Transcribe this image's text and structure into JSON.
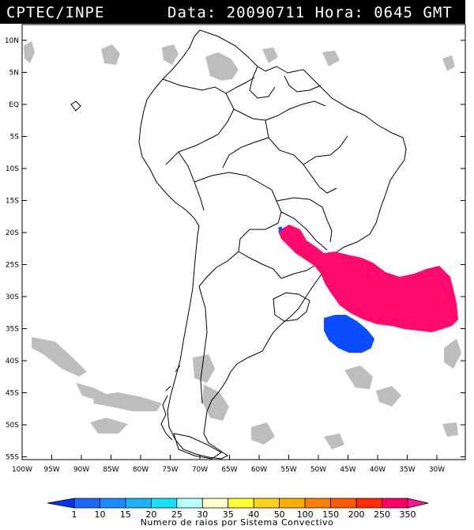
{
  "header": {
    "source": "CPTEC/INPE",
    "datetime": "Data: 20090711 Hora: 0645 GMT"
  },
  "latitude_labels": [
    "10N",
    "5N",
    "EQ",
    "5S",
    "10S",
    "15S",
    "20S",
    "25S",
    "30S",
    "35S",
    "40S",
    "45S",
    "50S",
    "55S"
  ],
  "longitude_labels": [
    "100W",
    "95W",
    "90W",
    "85W",
    "80W",
    "75W",
    "70W",
    "65W",
    "60W",
    "55W",
    "50W",
    "45W",
    "40W",
    "35W",
    "30W"
  ],
  "colorbar": {
    "labels": [
      "1",
      "10",
      "15",
      "20",
      "25",
      "30",
      "35",
      "40",
      "50",
      "100",
      "150",
      "200",
      "250",
      "350"
    ],
    "colors": [
      "#0033ff",
      "#1a66ff",
      "#1a8cff",
      "#19b3ff",
      "#1ae0ff",
      "#b3ffff",
      "#ffffcc",
      "#ffff33",
      "#ffd21a",
      "#ffad00",
      "#ff8000",
      "#ff5a00",
      "#ff2a00",
      "#ff0066",
      "#ff1493"
    ],
    "caption": "Numero de raios por Sistema Convectivo"
  },
  "colors": {
    "land_fill": "#ffffff",
    "border": "#000000",
    "cloud_gray": "#bdbdbd",
    "system_magenta": "#ff0a6c",
    "system_blue": "#0a4dff"
  }
}
